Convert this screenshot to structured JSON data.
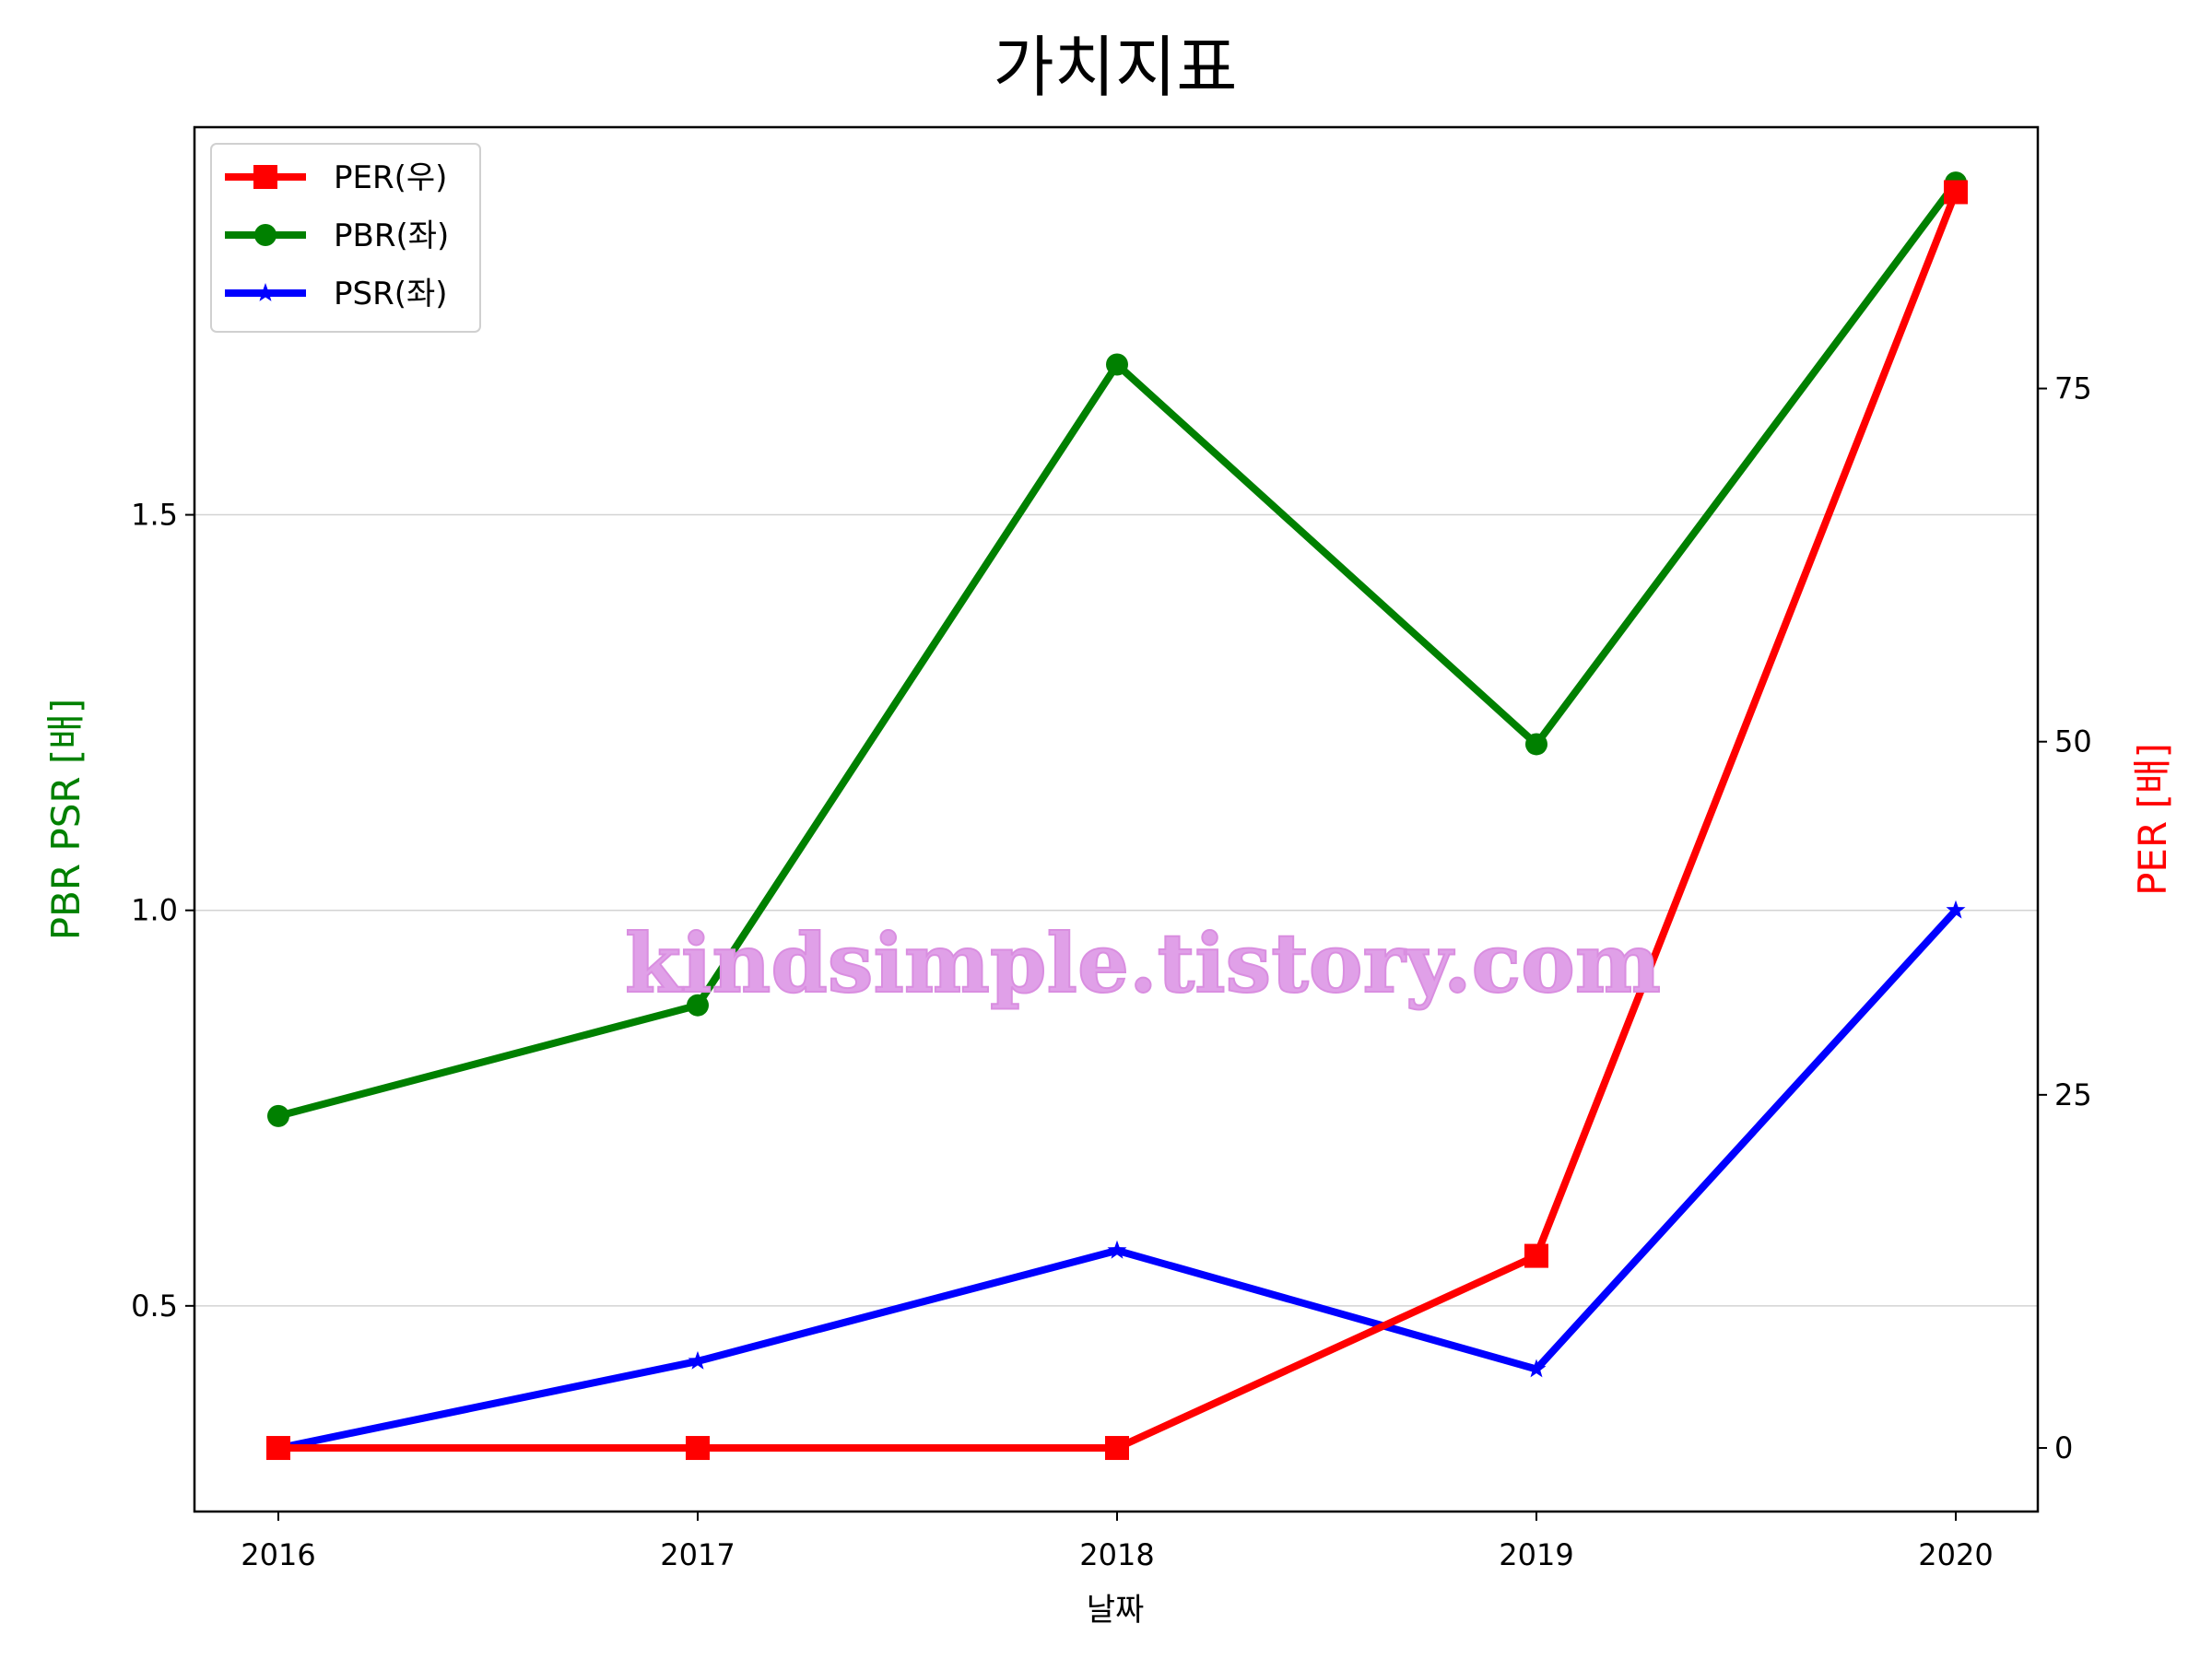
{
  "chart_data": {
    "type": "line",
    "title": "가치지표",
    "xlabel": "날짜",
    "ylabel_left": "PBR PSR [배]",
    "ylabel_right": "PER [배]",
    "categories": [
      "2016",
      "2017",
      "2018",
      "2019",
      "2020"
    ],
    "ylim_left": [
      0.24,
      1.99
    ],
    "ylim_right": [
      -4.5,
      93.5
    ],
    "yticks_left": [
      0.5,
      1.0,
      1.5
    ],
    "ytick_labels_left": [
      "0.5",
      "1.0",
      "1.5"
    ],
    "yticks_right": [
      0,
      25,
      50,
      75
    ],
    "ytick_labels_right": [
      "0",
      "25",
      "50",
      "75"
    ],
    "grid": "horizontal",
    "legend_position": "top-left",
    "watermark": "kindsimple.tistory.com",
    "colors": {
      "left_axis_label": "#008000",
      "right_axis_label": "#ff0000",
      "watermark": "#e0a0e8"
    },
    "series": [
      {
        "name": "PER(우)",
        "axis": "right",
        "marker": "square",
        "color": "#ff0000",
        "values": [
          0,
          0,
          0,
          13.6,
          88.9
        ]
      },
      {
        "name": "PBR(좌)",
        "axis": "left",
        "marker": "circle",
        "color": "#008000",
        "values": [
          0.74,
          0.88,
          1.69,
          1.21,
          1.92
        ]
      },
      {
        "name": "PSR(좌)",
        "axis": "left",
        "marker": "star",
        "color": "#0000ff",
        "values": [
          0.32,
          0.43,
          0.57,
          0.42,
          1.0
        ]
      }
    ]
  }
}
